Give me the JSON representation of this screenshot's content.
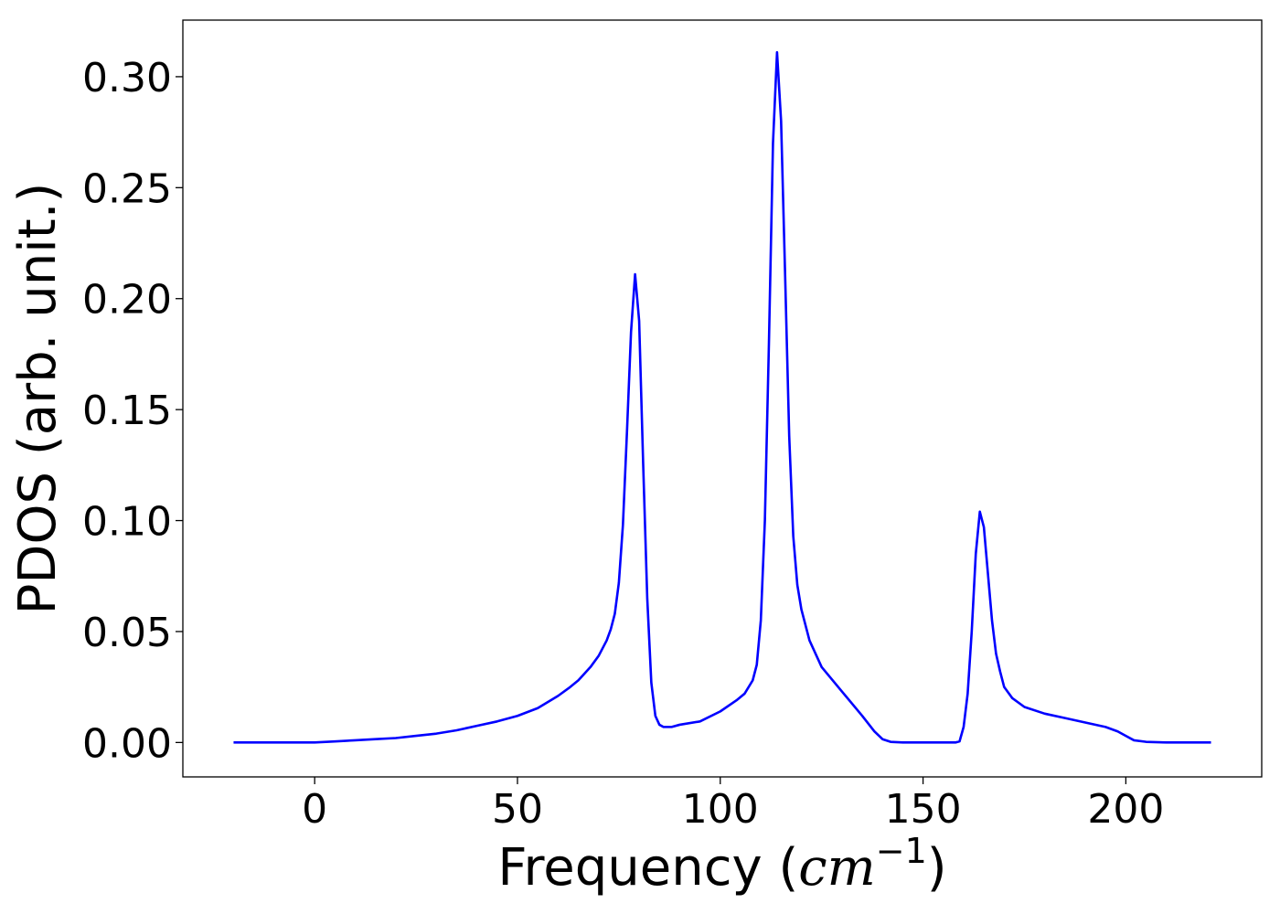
{
  "chart_data": {
    "type": "line",
    "xlabel": "Frequency (cm⁻¹)",
    "xlabel_parts": {
      "prefix": "Frequency (",
      "italic": "cm",
      "sup": "−1",
      "suffix": ")"
    },
    "ylabel": "PDOS (arb. unit.)",
    "xlim": [
      -32.5,
      233.5
    ],
    "ylim": [
      -0.0155,
      0.3255
    ],
    "xticks": [
      0,
      50,
      100,
      150,
      200
    ],
    "xtick_labels": [
      "0",
      "50",
      "100",
      "150",
      "200"
    ],
    "yticks": [
      0.0,
      0.05,
      0.1,
      0.15,
      0.2,
      0.25,
      0.3
    ],
    "ytick_labels": [
      "0.00",
      "0.05",
      "0.10",
      "0.15",
      "0.20",
      "0.25",
      "0.30"
    ],
    "grid": false,
    "legend": "none",
    "series": [
      {
        "color": "#0000ff",
        "x": [
          -20,
          0,
          5,
          10,
          15,
          20,
          25,
          30,
          35,
          40,
          45,
          50,
          55,
          60,
          63,
          65,
          68,
          70,
          72,
          73,
          74,
          75,
          76,
          77,
          78,
          79,
          80,
          81,
          82,
          83,
          84,
          85,
          86,
          88,
          90,
          95,
          100,
          104,
          106,
          108,
          109,
          110,
          111,
          112,
          113,
          114,
          115,
          116,
          117,
          118,
          119,
          120,
          122,
          125,
          130,
          135,
          138,
          140,
          142,
          145,
          150,
          155,
          158,
          159,
          160,
          161,
          162,
          163,
          164,
          165,
          166,
          167,
          168,
          169,
          170,
          172,
          175,
          180,
          185,
          190,
          195,
          198,
          200,
          202,
          205,
          210,
          221
        ],
        "y": [
          0.0,
          0.0,
          0.0005,
          0.001,
          0.0015,
          0.002,
          0.003,
          0.004,
          0.0055,
          0.0075,
          0.0095,
          0.012,
          0.0155,
          0.021,
          0.025,
          0.028,
          0.034,
          0.039,
          0.046,
          0.051,
          0.058,
          0.072,
          0.098,
          0.14,
          0.185,
          0.211,
          0.19,
          0.125,
          0.065,
          0.027,
          0.012,
          0.008,
          0.007,
          0.007,
          0.008,
          0.0095,
          0.014,
          0.019,
          0.022,
          0.028,
          0.035,
          0.055,
          0.1,
          0.18,
          0.27,
          0.311,
          0.28,
          0.21,
          0.138,
          0.093,
          0.071,
          0.06,
          0.046,
          0.034,
          0.023,
          0.012,
          0.005,
          0.0015,
          0.0003,
          0.0,
          0.0,
          0.0,
          0.0,
          0.0005,
          0.007,
          0.022,
          0.05,
          0.085,
          0.104,
          0.097,
          0.076,
          0.055,
          0.04,
          0.032,
          0.025,
          0.02,
          0.016,
          0.013,
          0.011,
          0.009,
          0.007,
          0.005,
          0.003,
          0.001,
          0.0003,
          0.0,
          0.0
        ]
      }
    ]
  }
}
